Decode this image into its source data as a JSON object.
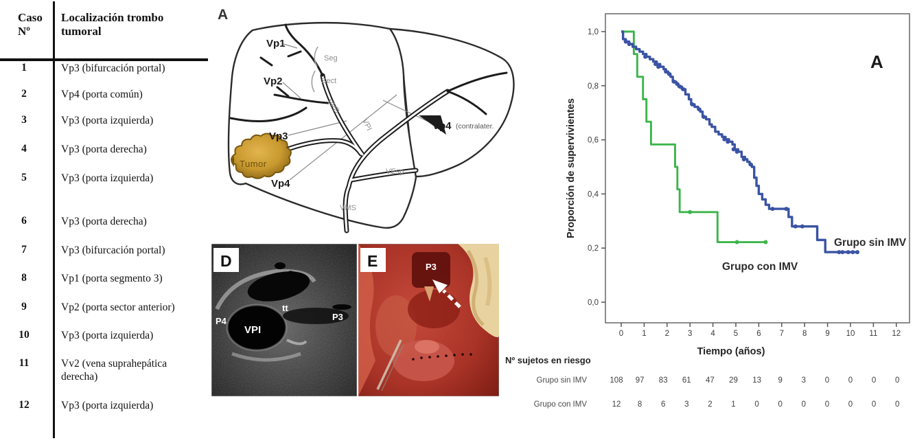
{
  "case_table": {
    "col1_header_line1": "Caso",
    "col1_header_line2": "Nº",
    "col2_header": "Localización trombo tumoral",
    "rows": [
      {
        "caso": "1",
        "localizacion": "Vp3 (bifurcación portal)"
      },
      {
        "caso": "2",
        "localizacion": "Vp4 (porta común)"
      },
      {
        "caso": "3",
        "localizacion": "Vp3 (porta izquierda)"
      },
      {
        "caso": "4",
        "localizacion": "Vp3 (porta derecha)"
      },
      {
        "caso": "5",
        "localizacion": "Vp3 (porta izquierda)"
      },
      {
        "caso": "6",
        "localizacion": "Vp3 (porta derecha)"
      },
      {
        "caso": "7",
        "localizacion": "Vp3 (bifurcación portal)"
      },
      {
        "caso": "8",
        "localizacion": "Vp1 (porta segmento 3)"
      },
      {
        "caso": "9",
        "localizacion": "Vp2 (porta sector anterior)"
      },
      {
        "caso": "10",
        "localizacion": "Vp3 (porta izquierda)"
      },
      {
        "caso": "11",
        "localizacion": "Vv2 (vena suprahepática derecha)"
      },
      {
        "caso": "12",
        "localizacion": "Vp3 (porta izquierda)"
      }
    ]
  },
  "diagram": {
    "panel_label": "A",
    "labels": {
      "vp1": "Vp1",
      "vp2": "Vp2",
      "vp3": "Vp3",
      "vp4": "Vp4",
      "vp4_contra_bold": "Vp4",
      "vp4_contra_rest": "(contralater.",
      "seg": "Seg",
      "sect": "Sect",
      "vpd": "VPD",
      "vpi": "VPI",
      "vesp": "VEsp",
      "vms": "VMS"
    },
    "tumor_label": "Tumor",
    "tumor_color": "#c8992e"
  },
  "ultrasound_panel": {
    "panel_label": "D",
    "annotations": {
      "p4": "P4",
      "vpi": "VPI",
      "tt": "tt",
      "p3": "P3"
    }
  },
  "surgery_panel": {
    "panel_label": "E",
    "annotations": {
      "p3": "P3"
    }
  },
  "chart_data": {
    "type": "line",
    "subtype": "kaplan-meier-step",
    "panel_label": "A",
    "xlabel": "Tiempo (años)",
    "ylabel": "Proporción de supervivientes",
    "xlim": [
      0,
      12
    ],
    "ylim": [
      0.0,
      1.0
    ],
    "xticks": [
      0,
      1,
      2,
      3,
      4,
      5,
      6,
      7,
      8,
      9,
      10,
      11,
      12
    ],
    "yticks": [
      0.0,
      0.2,
      0.4,
      0.6,
      0.8,
      1.0
    ],
    "ytick_labels": [
      "0,0",
      "0,2",
      "0,4",
      "0,6",
      "0,8",
      "1,0"
    ],
    "grid": false,
    "legend_position": "labels-inside-plot",
    "series": [
      {
        "name": "Grupo sin IMV",
        "color": "#3a53a3",
        "steps": [
          [
            0,
            1.0
          ],
          [
            0.08,
            0.972
          ],
          [
            0.2,
            0.963
          ],
          [
            0.35,
            0.954
          ],
          [
            0.5,
            0.944
          ],
          [
            0.65,
            0.935
          ],
          [
            0.8,
            0.926
          ],
          [
            0.95,
            0.917
          ],
          [
            1.1,
            0.907
          ],
          [
            1.25,
            0.898
          ],
          [
            1.4,
            0.889
          ],
          [
            1.55,
            0.88
          ],
          [
            1.7,
            0.87
          ],
          [
            1.85,
            0.861
          ],
          [
            1.95,
            0.852
          ],
          [
            2.05,
            0.843
          ],
          [
            2.15,
            0.833
          ],
          [
            2.25,
            0.815
          ],
          [
            2.4,
            0.806
          ],
          [
            2.5,
            0.796
          ],
          [
            2.65,
            0.787
          ],
          [
            2.8,
            0.768
          ],
          [
            2.95,
            0.75
          ],
          [
            3.05,
            0.731
          ],
          [
            3.2,
            0.722
          ],
          [
            3.35,
            0.713
          ],
          [
            3.45,
            0.704
          ],
          [
            3.55,
            0.685
          ],
          [
            3.7,
            0.676
          ],
          [
            3.85,
            0.657
          ],
          [
            3.95,
            0.648
          ],
          [
            4.1,
            0.63
          ],
          [
            4.25,
            0.62
          ],
          [
            4.4,
            0.611
          ],
          [
            4.55,
            0.602
          ],
          [
            4.7,
            0.593
          ],
          [
            4.85,
            0.583
          ],
          [
            4.95,
            0.565
          ],
          [
            5.1,
            0.556
          ],
          [
            5.25,
            0.537
          ],
          [
            5.4,
            0.528
          ],
          [
            5.5,
            0.519
          ],
          [
            5.6,
            0.509
          ],
          [
            5.7,
            0.5
          ],
          [
            5.8,
            0.46
          ],
          [
            5.9,
            0.43
          ],
          [
            6.0,
            0.4
          ],
          [
            6.15,
            0.38
          ],
          [
            6.3,
            0.36
          ],
          [
            6.45,
            0.345
          ],
          [
            7.3,
            0.315
          ],
          [
            7.45,
            0.28
          ],
          [
            8.55,
            0.23
          ],
          [
            8.9,
            0.185
          ],
          [
            10.35,
            0.185
          ]
        ],
        "censor_marks": [
          [
            0.2,
            0.963
          ],
          [
            0.35,
            0.954
          ],
          [
            1.05,
            0.907
          ],
          [
            1.5,
            0.88
          ],
          [
            1.62,
            0.87
          ],
          [
            1.95,
            0.852
          ],
          [
            2.1,
            0.843
          ],
          [
            2.3,
            0.815
          ],
          [
            2.45,
            0.806
          ],
          [
            2.58,
            0.796
          ],
          [
            2.7,
            0.787
          ],
          [
            3.1,
            0.731
          ],
          [
            3.4,
            0.713
          ],
          [
            3.6,
            0.685
          ],
          [
            4.5,
            0.602
          ],
          [
            4.65,
            0.593
          ],
          [
            4.9,
            0.565
          ],
          [
            5.05,
            0.556
          ],
          [
            5.35,
            0.528
          ],
          [
            5.65,
            0.509
          ],
          [
            6.6,
            0.345
          ],
          [
            7.2,
            0.345
          ],
          [
            7.6,
            0.28
          ],
          [
            7.9,
            0.28
          ],
          [
            9.5,
            0.185
          ],
          [
            9.65,
            0.185
          ],
          [
            9.9,
            0.185
          ],
          [
            10.1,
            0.185
          ],
          [
            10.3,
            0.185
          ]
        ]
      },
      {
        "name": "Grupo con IMV",
        "color": "#3cb54a",
        "steps": [
          [
            0.1,
            1.0
          ],
          [
            0.55,
            0.917
          ],
          [
            0.7,
            0.833
          ],
          [
            0.95,
            0.75
          ],
          [
            1.1,
            0.667
          ],
          [
            1.3,
            0.583
          ],
          [
            2.35,
            0.5
          ],
          [
            2.45,
            0.417
          ],
          [
            2.55,
            0.333
          ],
          [
            4.2,
            0.222
          ],
          [
            6.35,
            0.222
          ]
        ],
        "censor_marks": [
          [
            3.0,
            0.333
          ],
          [
            5.05,
            0.222
          ],
          [
            6.3,
            0.222
          ]
        ]
      }
    ],
    "risk_table": {
      "title": "Nº sujetos en riesgo",
      "time_points": [
        0,
        1,
        2,
        3,
        4,
        5,
        6,
        7,
        8,
        9,
        10,
        11,
        12
      ],
      "rows": [
        {
          "name": "Grupo sin IMV",
          "values": [
            108,
            97,
            83,
            61,
            47,
            29,
            13,
            9,
            3,
            0,
            0,
            0,
            0
          ]
        },
        {
          "name": "Grupo con IMV",
          "values": [
            12,
            8,
            6,
            3,
            2,
            1,
            0,
            0,
            0,
            0,
            0,
            0,
            0
          ]
        }
      ]
    }
  }
}
